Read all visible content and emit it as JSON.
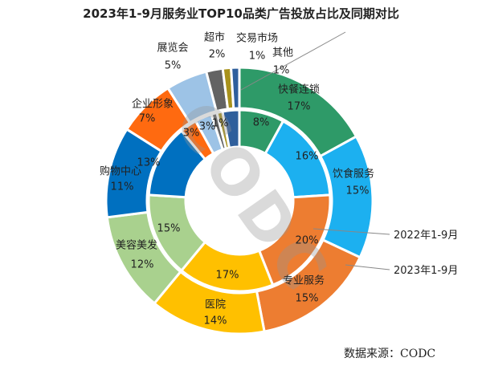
{
  "chart_data": {
    "type": "pie",
    "title": "2023年1-9月服务业TOP10品类广告投放占比及同期对比",
    "categories": [
      "快餐连锁",
      "饮食服务",
      "专业服务",
      "医院",
      "美容美发",
      "购物中心",
      "企业形象",
      "展览会",
      "超市",
      "交易市场",
      "其他"
    ],
    "colors": [
      "#2e9a68",
      "#1cb0f0",
      "#ed7d31",
      "#ffc000",
      "#a9d18e",
      "#0070c0",
      "#ff6a10",
      "#9dc3e6",
      "#636363",
      "#a8921c",
      "#2f5f9c"
    ],
    "series": [
      {
        "name": "2023年1-9月",
        "ring": "outer",
        "values": [
          17,
          15,
          15,
          14,
          12,
          11,
          7,
          5,
          2,
          1,
          1
        ],
        "labels": [
          "17%",
          "15%",
          "15%",
          "14%",
          "12%",
          "11%",
          "7%",
          "5%",
          "2%",
          "1%",
          "1%"
        ]
      },
      {
        "name": "2022年1-9月",
        "ring": "inner",
        "values": [
          8,
          16,
          20,
          17,
          15,
          13,
          3,
          3,
          1,
          1,
          3
        ],
        "labels": [
          "8%",
          "16%",
          "20%",
          "17%",
          "15%",
          "13%",
          "3%",
          "3%",
          "",
          "1%",
          ""
        ]
      }
    ],
    "legend_placement": "right"
  },
  "watermark": "CODC",
  "source": "数据来源：CODC"
}
